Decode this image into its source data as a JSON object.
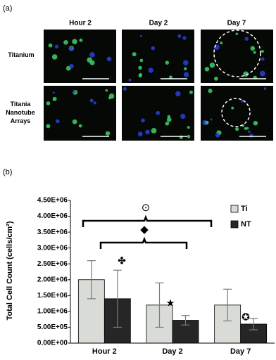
{
  "panel_a": {
    "label": "(a)",
    "columns": [
      "Hour 2",
      "Day 2",
      "Day 7"
    ],
    "rows": [
      "Titanium",
      "Titania Nanotube Arrays"
    ]
  },
  "chart_data": {
    "type": "bar",
    "label": "(b)",
    "ylabel": "Total Cell Count (cells/cm²)",
    "categories": [
      "Hour 2",
      "Day 2",
      "Day 7"
    ],
    "series": [
      {
        "name": "Ti",
        "color": "#d9dcd6",
        "values": [
          2000000,
          1200000,
          1200000
        ],
        "errors": [
          600000,
          700000,
          500000
        ]
      },
      {
        "name": "NT",
        "color": "#262626",
        "values": [
          1400000,
          720000,
          600000
        ],
        "errors": [
          900000,
          150000,
          180000
        ]
      }
    ],
    "ylim": [
      0,
      4500000
    ],
    "yticks": [
      {
        "value": 0,
        "label": "0.00E+00"
      },
      {
        "value": 500000,
        "label": "5.00E+05"
      },
      {
        "value": 1000000,
        "label": "1.00E+06"
      },
      {
        "value": 1500000,
        "label": "1.50E+06"
      },
      {
        "value": 2000000,
        "label": "2.00E+06"
      },
      {
        "value": 2500000,
        "label": "2.50E+06"
      },
      {
        "value": 3000000,
        "label": "3.00E+06"
      },
      {
        "value": 3500000,
        "label": "3.50E+06"
      },
      {
        "value": 4000000,
        "label": "4.00E+06"
      },
      {
        "value": 4500000,
        "label": "4.50E+06"
      }
    ],
    "annotations": [
      "⊙",
      "◆",
      "✤",
      "★",
      "✪"
    ],
    "legend": "upper right"
  }
}
